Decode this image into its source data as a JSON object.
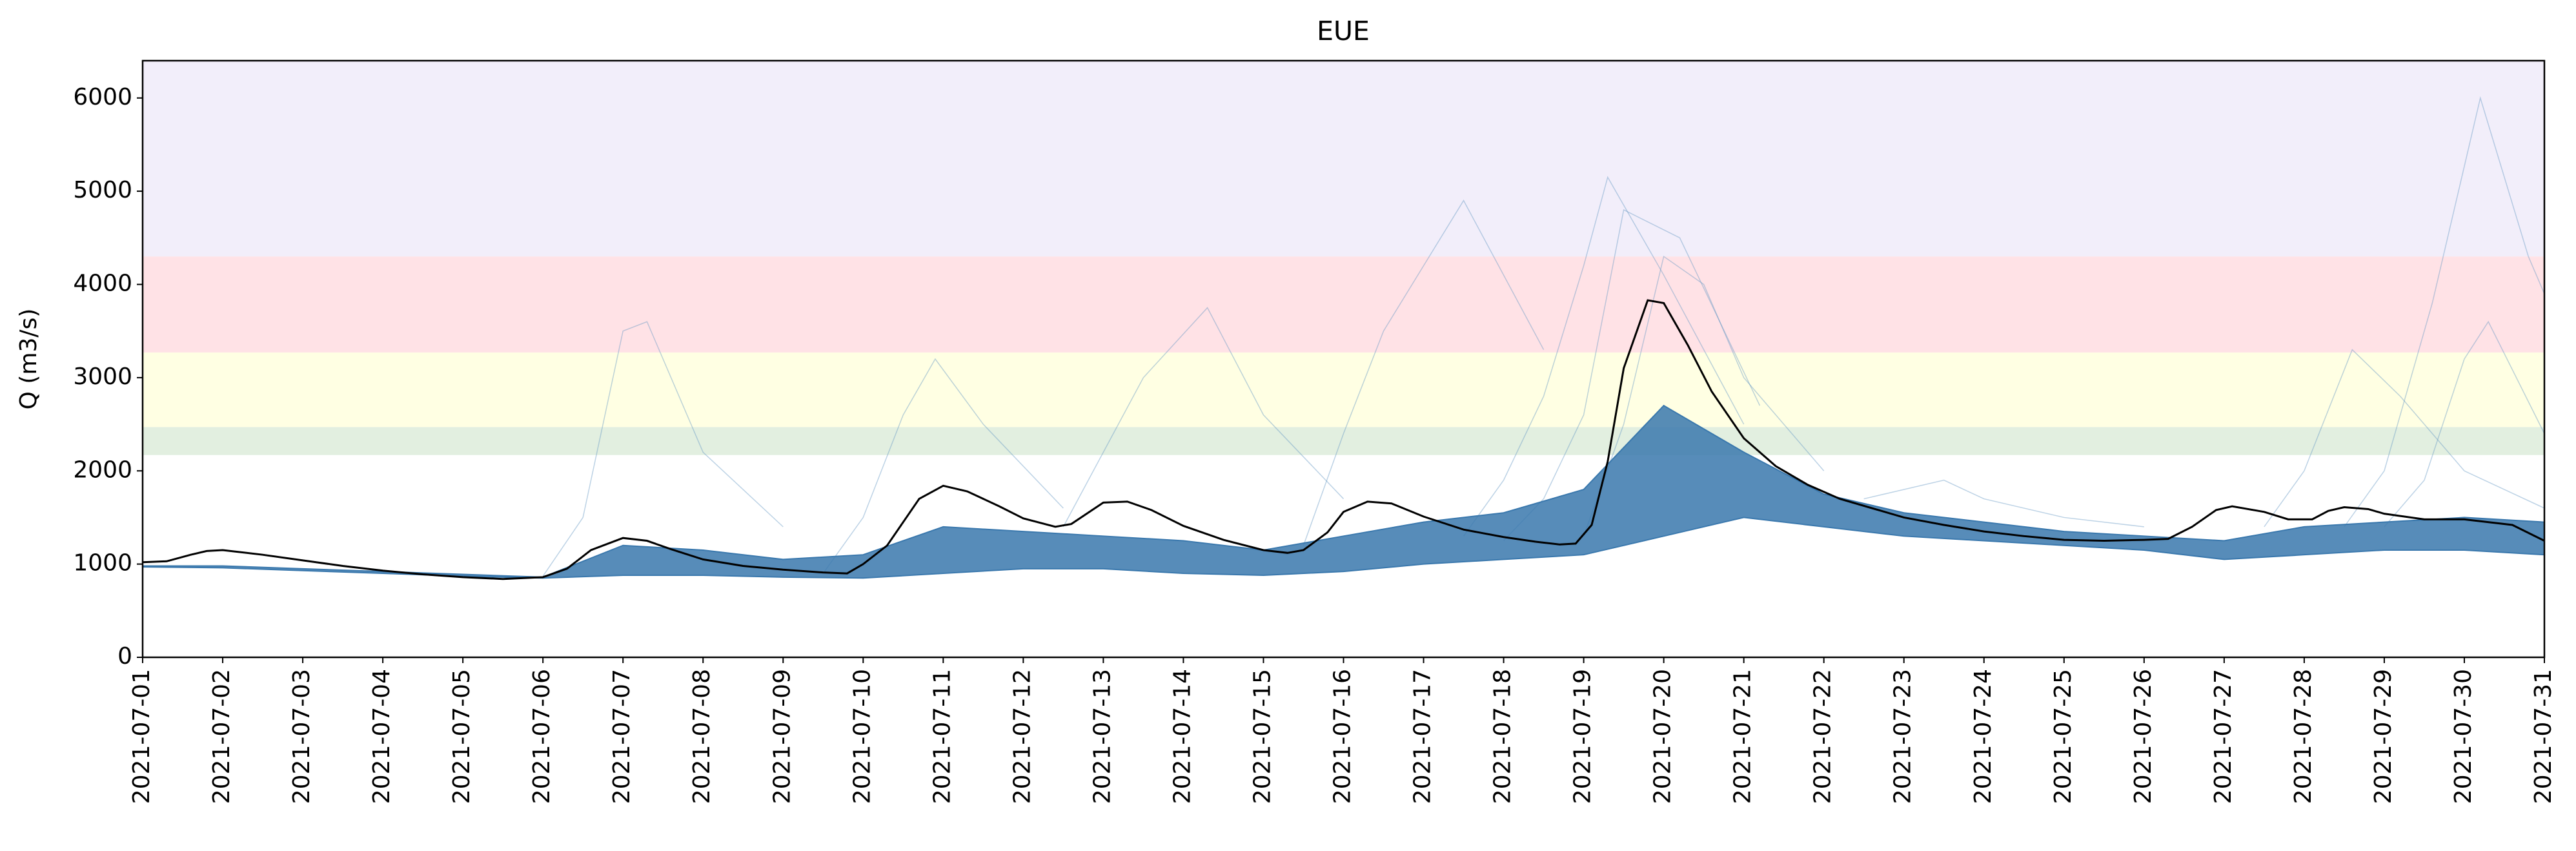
{
  "chart_data": {
    "type": "ensemble",
    "title": "EUE",
    "ylabel": "Q (m3/s)",
    "xlim": [
      0,
      30
    ],
    "ylim": [
      0,
      6400
    ],
    "yticks": [
      0,
      1000,
      2000,
      3000,
      4000,
      5000,
      6000
    ],
    "xticks": [
      {
        "value": 0,
        "label": "2021-07-01"
      },
      {
        "value": 1,
        "label": "2021-07-02"
      },
      {
        "value": 2,
        "label": "2021-07-03"
      },
      {
        "value": 3,
        "label": "2021-07-04"
      },
      {
        "value": 4,
        "label": "2021-07-05"
      },
      {
        "value": 5,
        "label": "2021-07-06"
      },
      {
        "value": 6,
        "label": "2021-07-07"
      },
      {
        "value": 7,
        "label": "2021-07-08"
      },
      {
        "value": 8,
        "label": "2021-07-09"
      },
      {
        "value": 9,
        "label": "2021-07-10"
      },
      {
        "value": 10,
        "label": "2021-07-11"
      },
      {
        "value": 11,
        "label": "2021-07-12"
      },
      {
        "value": 12,
        "label": "2021-07-13"
      },
      {
        "value": 13,
        "label": "2021-07-14"
      },
      {
        "value": 14,
        "label": "2021-07-15"
      },
      {
        "value": 15,
        "label": "2021-07-16"
      },
      {
        "value": 16,
        "label": "2021-07-17"
      },
      {
        "value": 17,
        "label": "2021-07-18"
      },
      {
        "value": 18,
        "label": "2021-07-19"
      },
      {
        "value": 19,
        "label": "2021-07-20"
      },
      {
        "value": 20,
        "label": "2021-07-21"
      },
      {
        "value": 21,
        "label": "2021-07-22"
      },
      {
        "value": 22,
        "label": "2021-07-23"
      },
      {
        "value": 23,
        "label": "2021-07-24"
      },
      {
        "value": 24,
        "label": "2021-07-25"
      },
      {
        "value": 25,
        "label": "2021-07-26"
      },
      {
        "value": 26,
        "label": "2021-07-27"
      },
      {
        "value": 27,
        "label": "2021-07-28"
      },
      {
        "value": 28,
        "label": "2021-07-29"
      },
      {
        "value": 29,
        "label": "2021-07-30"
      },
      {
        "value": 30,
        "label": "2021-07-31"
      }
    ],
    "bands": [
      {
        "from": 2170,
        "to": 2470,
        "color": "#e2efe0"
      },
      {
        "from": 2470,
        "to": 3270,
        "color": "#ffffe3"
      },
      {
        "from": 3270,
        "to": 4300,
        "color": "#ffe2e6"
      },
      {
        "from": 4300,
        "to": 6400,
        "color": "#f2eefa"
      }
    ],
    "ensemble_range": {
      "color": "#3a78ad",
      "x": [
        0,
        1,
        2,
        3,
        4,
        5,
        6,
        7,
        8,
        9,
        10,
        11,
        12,
        13,
        14,
        15,
        16,
        17,
        18,
        19,
        20,
        21,
        22,
        23,
        24,
        25,
        26,
        27,
        28,
        29,
        30
      ],
      "low": [
        970,
        960,
        930,
        900,
        870,
        850,
        880,
        880,
        860,
        850,
        900,
        950,
        950,
        900,
        880,
        920,
        1000,
        1050,
        1100,
        1300,
        1500,
        1400,
        1300,
        1250,
        1200,
        1150,
        1050,
        1100,
        1150,
        1150,
        1100
      ],
      "high": [
        980,
        980,
        950,
        920,
        890,
        860,
        1200,
        1150,
        1050,
        1100,
        1400,
        1350,
        1300,
        1250,
        1150,
        1300,
        1450,
        1550,
        1800,
        2700,
        2200,
        1750,
        1550,
        1450,
        1350,
        1300,
        1250,
        1400,
        1450,
        1500,
        1450
      ]
    },
    "members_color": "#6a9cc6",
    "members": [
      {
        "x": [
          5,
          5.5,
          6,
          6.3,
          7,
          8
        ],
        "values": [
          870,
          1500,
          3500,
          3600,
          2200,
          1400
        ]
      },
      {
        "x": [
          8.5,
          9,
          9.5,
          9.9,
          10.5,
          11.5
        ],
        "values": [
          900,
          1500,
          2600,
          3200,
          2500,
          1600
        ]
      },
      {
        "x": [
          11.5,
          12,
          12.5,
          13.3,
          14,
          15
        ],
        "values": [
          1400,
          2200,
          3000,
          3750,
          2600,
          1700
        ]
      },
      {
        "x": [
          14.5,
          15,
          15.5,
          16,
          16.5,
          17.5
        ],
        "values": [
          1200,
          2400,
          3500,
          4200,
          4900,
          3300
        ]
      },
      {
        "x": [
          16.5,
          17,
          17.5,
          18,
          18.3,
          19,
          20
        ],
        "values": [
          1300,
          1900,
          2800,
          4200,
          5150,
          4100,
          2500
        ]
      },
      {
        "x": [
          17,
          17.5,
          18,
          18.5,
          19.2,
          20.2
        ],
        "values": [
          1250,
          1700,
          2600,
          4800,
          4500,
          2700
        ]
      },
      {
        "x": [
          18,
          18.5,
          19,
          19.5,
          20,
          21
        ],
        "values": [
          1300,
          2500,
          4300,
          4000,
          3000,
          2000
        ]
      },
      {
        "x": [
          26.5,
          27,
          27.6,
          28.2,
          29,
          30
        ],
        "values": [
          1400,
          2000,
          3300,
          2800,
          2000,
          1600
        ]
      },
      {
        "x": [
          27.5,
          28,
          28.6,
          29.2,
          29.8,
          30
        ],
        "values": [
          1400,
          2000,
          3800,
          6000,
          4300,
          3900
        ]
      },
      {
        "x": [
          28,
          28.5,
          29,
          29.3,
          30
        ],
        "values": [
          1400,
          1900,
          3200,
          3600,
          2400
        ]
      },
      {
        "x": [
          21.5,
          22,
          22.5,
          23,
          24,
          25
        ],
        "values": [
          1700,
          1800,
          1900,
          1700,
          1500,
          1400
        ]
      }
    ],
    "observed": {
      "color": "#000000",
      "x": [
        0,
        0.3,
        0.6,
        0.8,
        1,
        1.5,
        2,
        2.5,
        3,
        3.5,
        4,
        4.5,
        5,
        5.3,
        5.6,
        6,
        6.3,
        6.6,
        7,
        7.5,
        8,
        8.5,
        8.8,
        9,
        9.3,
        9.7,
        10,
        10.3,
        10.7,
        11,
        11.4,
        11.6,
        12,
        12.3,
        12.6,
        13,
        13.5,
        14,
        14.3,
        14.5,
        14.8,
        15,
        15.3,
        15.6,
        16,
        16.5,
        17,
        17.4,
        17.7,
        17.9,
        18.1,
        18.3,
        18.5,
        18.8,
        19,
        19.3,
        19.6,
        20,
        20.4,
        20.8,
        21.2,
        21.6,
        22,
        22.5,
        23,
        23.5,
        24,
        24.5,
        25,
        25.3,
        25.6,
        25.9,
        26.1,
        26.5,
        26.8,
        27.1,
        27.3,
        27.5,
        27.8,
        28,
        28.5,
        29,
        29.6,
        30
      ],
      "values": [
        1020,
        1030,
        1100,
        1140,
        1150,
        1100,
        1040,
        980,
        930,
        890,
        860,
        840,
        860,
        950,
        1150,
        1280,
        1250,
        1160,
        1050,
        980,
        940,
        910,
        900,
        1000,
        1200,
        1700,
        1840,
        1780,
        1620,
        1490,
        1400,
        1430,
        1660,
        1670,
        1580,
        1410,
        1260,
        1150,
        1120,
        1150,
        1340,
        1560,
        1670,
        1650,
        1510,
        1370,
        1290,
        1240,
        1210,
        1220,
        1420,
        2100,
        3100,
        3830,
        3800,
        3350,
        2850,
        2350,
        2050,
        1850,
        1700,
        1600,
        1500,
        1420,
        1350,
        1300,
        1260,
        1250,
        1260,
        1270,
        1400,
        1580,
        1620,
        1560,
        1480,
        1480,
        1570,
        1610,
        1590,
        1540,
        1480,
        1480,
        1420,
        1250
      ]
    }
  }
}
